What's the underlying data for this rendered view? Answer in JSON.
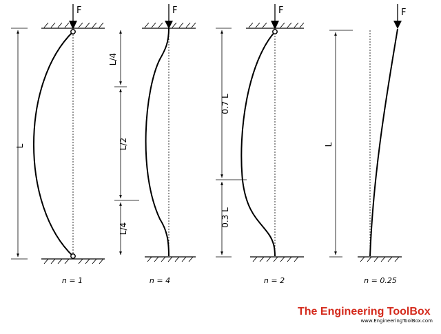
{
  "force_label": "F",
  "columns": [
    {
      "id": "pinned-pinned",
      "n_label": "n = 1",
      "dims": [
        "L"
      ]
    },
    {
      "id": "fixed-fixed",
      "n_label": "n = 4",
      "dims": [
        "L/4",
        "L/2",
        "L/4"
      ]
    },
    {
      "id": "fixed-pinned",
      "n_label": "n = 2",
      "dims": [
        "0.7 L",
        "0.3 L"
      ]
    },
    {
      "id": "fixed-free",
      "n_label": "n = 0.25",
      "dims": [
        "L"
      ]
    }
  ],
  "brand": {
    "name": "The Engineering ToolBox",
    "url": "www.EngineeringToolBox.com",
    "color": "#d42a1c"
  }
}
